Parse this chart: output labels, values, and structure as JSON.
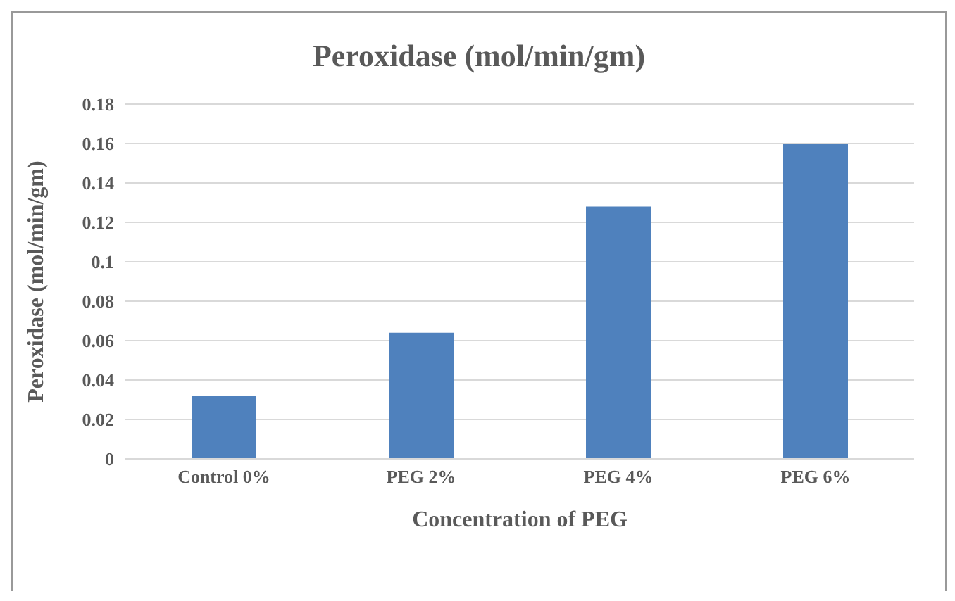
{
  "chart_data": {
    "type": "bar",
    "title": "Peroxidase  (mol/min/gm)",
    "xlabel": "Concentration of PEG",
    "ylabel": "Peroxidase (mol/min/gm)",
    "categories": [
      "Control 0%",
      "PEG 2%",
      "PEG 4%",
      "PEG 6%"
    ],
    "values": [
      0.032,
      0.064,
      0.128,
      0.16
    ],
    "color": "#4f81bd",
    "ylim": [
      0,
      0.18
    ],
    "yticks": [
      0,
      0.02,
      0.04,
      0.06,
      0.08,
      0.1,
      0.12,
      0.14,
      0.16,
      0.18
    ],
    "grid": "y"
  }
}
